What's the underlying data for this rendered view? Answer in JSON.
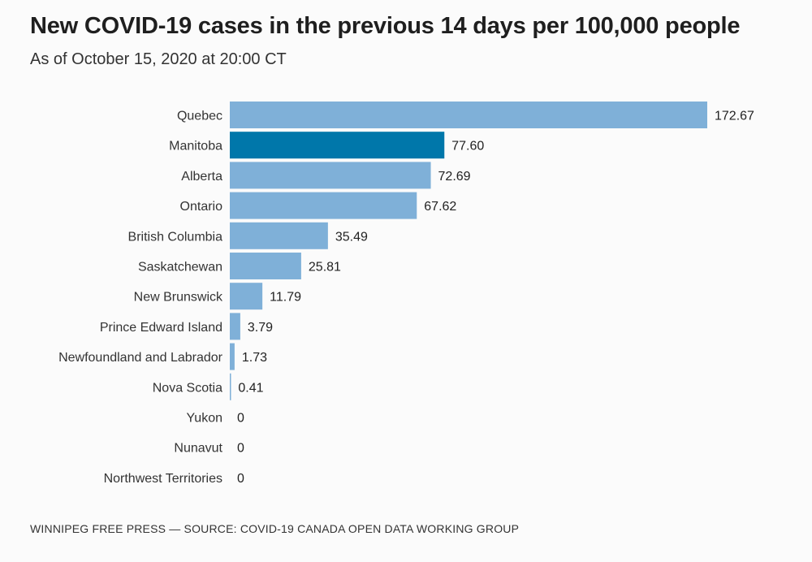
{
  "title": "New COVID-19 cases in the previous 14 days per 100,000 people",
  "subtitle": "As of October 15, 2020 at 20:00 CT",
  "source": "WINNIPEG FREE PRESS — SOURCE: COVID-19 CANADA OPEN DATA WORKING GROUP",
  "colors": {
    "bar": "#7fb0d8",
    "highlight": "#0077aa",
    "baseline": "#cfe1f0"
  },
  "chart_data": {
    "type": "bar",
    "orientation": "horizontal",
    "highlight": "Manitoba",
    "categories": [
      "Quebec",
      "Manitoba",
      "Alberta",
      "Ontario",
      "British Columbia",
      "Saskatchewan",
      "New Brunswick",
      "Prince Edward Island",
      "Newfoundland and Labrador",
      "Nova Scotia",
      "Yukon",
      "Nunavut",
      "Northwest Territories"
    ],
    "values": [
      172.67,
      77.6,
      72.69,
      67.62,
      35.49,
      25.81,
      11.79,
      3.79,
      1.73,
      0.41,
      0,
      0,
      0
    ],
    "value_labels": [
      "172.67",
      "77.60",
      "72.69",
      "67.62",
      "35.49",
      "25.81",
      "11.79",
      "3.79",
      "1.73",
      "0.41",
      "0",
      "0",
      "0"
    ],
    "xlim": [
      0,
      172.67
    ],
    "grid": false,
    "legend": "none"
  }
}
